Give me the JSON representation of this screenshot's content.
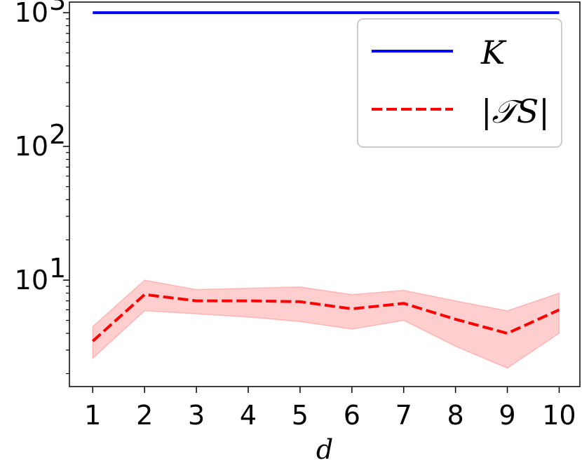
{
  "chart_data": {
    "type": "line",
    "x": [
      1,
      2,
      3,
      4,
      5,
      6,
      7,
      8,
      9,
      10
    ],
    "xlabel": "d",
    "ylabel": "",
    "yscale": "log",
    "xlim": [
      0.55,
      10.4
    ],
    "ylim": [
      1.6,
      1200
    ],
    "x_ticks": [
      "1",
      "2",
      "3",
      "4",
      "5",
      "6",
      "7",
      "8",
      "9",
      "10"
    ],
    "y_ticks": [
      {
        "value": 10,
        "base": "10",
        "exp": "1"
      },
      {
        "value": 100,
        "base": "10",
        "exp": "2"
      },
      {
        "value": 1000,
        "base": "10",
        "exp": "3"
      }
    ],
    "grid": false,
    "legend": "top-right",
    "series": [
      {
        "name": "K",
        "color": "#0000ff",
        "style": "solid",
        "values": [
          1000,
          1000,
          1000,
          1000,
          1000,
          1000,
          1000,
          1000,
          1000,
          1000
        ]
      },
      {
        "name": "|𝒯S|",
        "color": "#ff0000",
        "style": "dashed",
        "values": [
          3.5,
          7.8,
          7.0,
          7.0,
          6.9,
          6.1,
          6.7,
          5.1,
          4.0,
          6.0
        ],
        "band_lower": [
          2.6,
          5.9,
          5.6,
          5.3,
          4.9,
          4.3,
          5.0,
          3.2,
          2.2,
          4.0
        ],
        "band_upper": [
          4.5,
          10.0,
          8.5,
          8.7,
          8.9,
          7.8,
          8.4,
          7.0,
          5.9,
          8.0
        ],
        "band_color": "#ffcccc"
      }
    ]
  }
}
